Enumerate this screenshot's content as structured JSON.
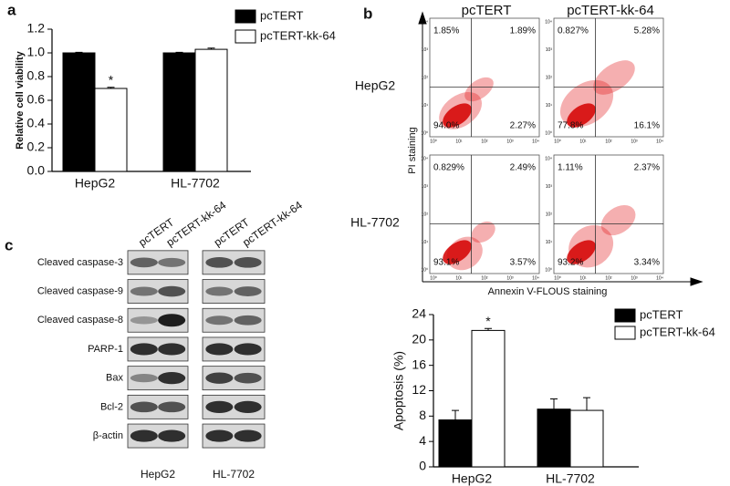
{
  "chart_data": [
    {
      "type": "bar",
      "panel_label": "a",
      "ylabel": "Relative cell viability",
      "categories": [
        "HepG2",
        "HL-7702"
      ],
      "series": [
        {
          "name": "pcTERT",
          "color": "#000000",
          "values": [
            1.0,
            1.0
          ],
          "errors": [
            0.005,
            0.005
          ],
          "significance": [
            null,
            null
          ]
        },
        {
          "name": "pcTERT-kk-64",
          "color": "#ffffff",
          "values": [
            0.7,
            1.03
          ],
          "errors": [
            0.01,
            0.01
          ],
          "significance": [
            "*",
            null
          ]
        }
      ],
      "ylim": [
        0,
        1.2
      ],
      "yticks": [
        {
          "value": 0,
          "label": "0.0"
        },
        0.2,
        0.4,
        0.6,
        0.8,
        {
          "value": 1,
          "label": "1.0"
        },
        1.2
      ]
    },
    {
      "type": "bar",
      "ylabel": "Apoptosis (%)",
      "categories": [
        "HepG2",
        "HL-7702"
      ],
      "series": [
        {
          "name": "pcTERT",
          "color": "#000000",
          "values": [
            7.4,
            9.1
          ],
          "errors": [
            1.5,
            1.6
          ],
          "significance": [
            null,
            null
          ]
        },
        {
          "name": "pcTERT-kk-64",
          "color": "#ffffff",
          "values": [
            21.5,
            8.9
          ],
          "errors": [
            0.3,
            2.0
          ],
          "significance": [
            "*",
            null
          ]
        }
      ],
      "ylim": [
        0,
        24
      ],
      "yticks": [
        0,
        4,
        8,
        12,
        16,
        20,
        24
      ]
    }
  ],
  "flow_cytometry": {
    "panel_label": "b",
    "columns": [
      "pcTERT",
      "pcTERT-kk-64"
    ],
    "rows": [
      "HepG2",
      "HL-7702"
    ],
    "ylabel": "PI staining",
    "xlabel": "Annexin V-FLOUS staining",
    "axis_tick_labels": [
      "10⁰",
      "10¹",
      "10²",
      "10³",
      "10⁴"
    ],
    "quadrants": [
      [
        [
          "1.85%",
          "1.89%",
          "94.0%",
          "2.27%"
        ],
        [
          "0.827%",
          "5.28%",
          "77.8%",
          "16.1%"
        ]
      ],
      [
        [
          "0.829%",
          "2.49%",
          "93.1%",
          "3.57%"
        ],
        [
          "1.11%",
          "2.37%",
          "93.2%",
          "3.34%"
        ]
      ]
    ]
  },
  "western_blot": {
    "panel_label": "c",
    "lanes": [
      "pcTERT",
      "pcTERT-kk-64"
    ],
    "cell_lines": [
      "HepG2",
      "HL-7702"
    ],
    "proteins": [
      "Cleaved caspase-3",
      "Cleaved caspase-9",
      "Cleaved caspase-8",
      "PARP-1",
      "Bax",
      "Bcl-2",
      "β-actin"
    ]
  }
}
